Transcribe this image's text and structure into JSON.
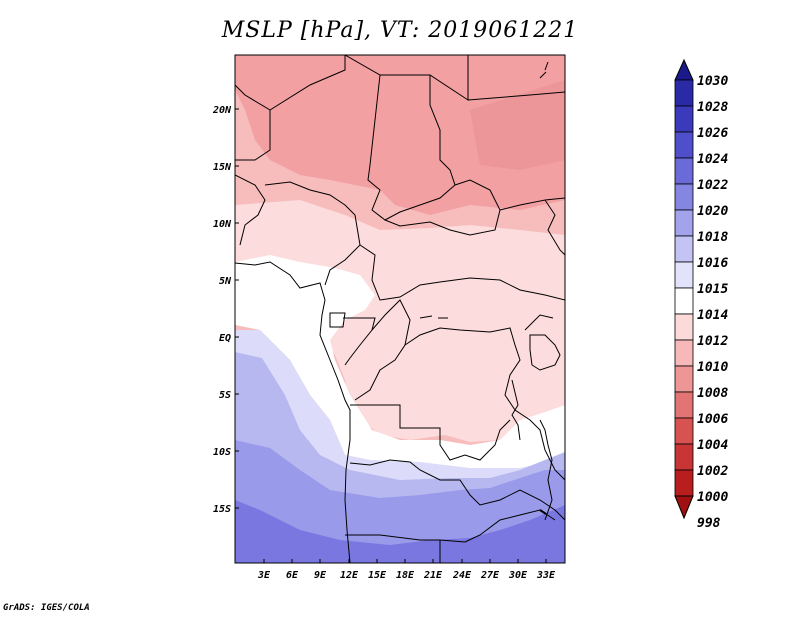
{
  "title": "MSLP [hPa], VT: 2019061221",
  "footer": "GrADS: IGES/COLA",
  "map": {
    "lat_labels": [
      "20N",
      "15N",
      "10N",
      "5N",
      "EQ",
      "5S",
      "10S",
      "15S"
    ],
    "lon_labels": [
      "3E",
      "6E",
      "9E",
      "12E",
      "15E",
      "18E",
      "21E",
      "24E",
      "27E",
      "30E",
      "33E"
    ],
    "colors": {
      "deep_pink": "#f2a0a2",
      "mid_pink": "#f7bcbc",
      "light_pink": "#fcdcdc",
      "white": "#ffffff",
      "pale_blue": "#dcdcfa",
      "light_blue": "#b8b8f0",
      "mid_blue": "#9a9aea",
      "deep_blue": "#7a78e0"
    }
  },
  "colorbar": {
    "labels": [
      "1030",
      "1028",
      "1026",
      "1024",
      "1022",
      "1020",
      "1018",
      "1016",
      "1015",
      "1014",
      "1012",
      "1010",
      "1008",
      "1006",
      "1004",
      "1002",
      "1000",
      "998"
    ],
    "colors": [
      "#1a1a8a",
      "#2a2aa6",
      "#3a3abb",
      "#4f4fcc",
      "#6a6ad8",
      "#8585e2",
      "#a3a3ec",
      "#c4c4f4",
      "#e2e2fa",
      "#ffffff",
      "#fcdada",
      "#f6b8b8",
      "#ee9696",
      "#e37474",
      "#d85252",
      "#c93434",
      "#b81e1e",
      "#a01010"
    ]
  }
}
